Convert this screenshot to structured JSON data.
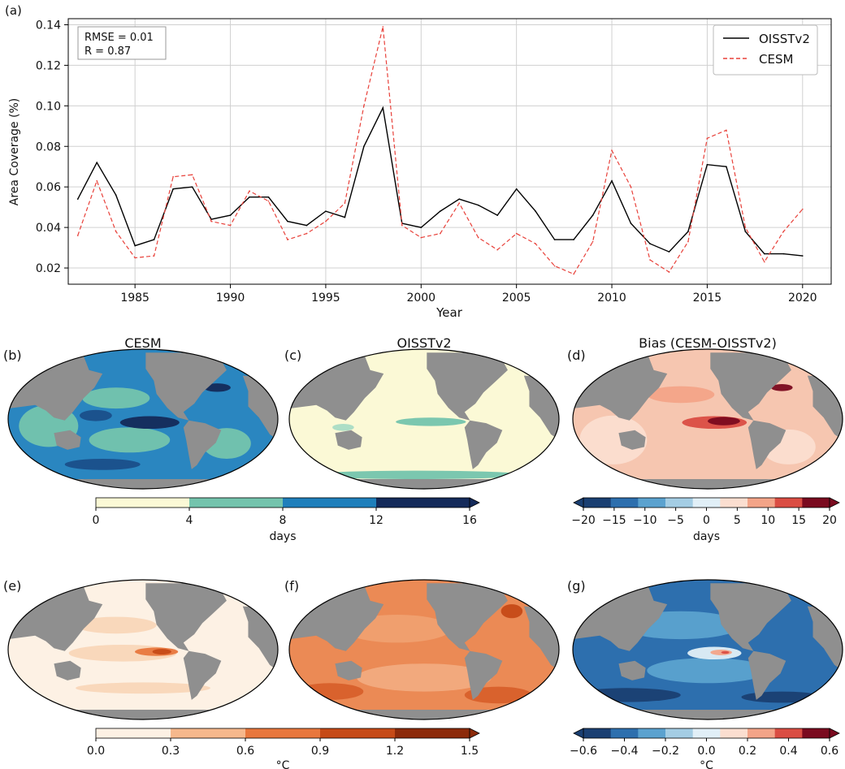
{
  "chart_data": [
    {
      "panel": "(a)",
      "type": "line",
      "xlabel": "Year",
      "ylabel": "Area Coverage (%)",
      "xlim": [
        1981.5,
        2021.5
      ],
      "ylim": [
        0.012,
        0.143
      ],
      "xticks": [
        1985,
        1990,
        1995,
        2000,
        2005,
        2010,
        2015,
        2020
      ],
      "yticks": [
        0.02,
        0.04,
        0.06,
        0.08,
        0.1,
        0.12,
        0.14
      ],
      "grid": true,
      "legend_position": "top-right",
      "annotation": [
        "RMSE = 0.01",
        "R = 0.87"
      ],
      "x": [
        1982,
        1983,
        1984,
        1985,
        1986,
        1987,
        1988,
        1989,
        1990,
        1991,
        1992,
        1993,
        1994,
        1995,
        1996,
        1997,
        1998,
        1999,
        2000,
        2001,
        2002,
        2003,
        2004,
        2005,
        2006,
        2007,
        2008,
        2009,
        2010,
        2011,
        2012,
        2013,
        2014,
        2015,
        2016,
        2017,
        2018,
        2019,
        2020
      ],
      "series": [
        {
          "name": "OISSTv2",
          "color": "#000000",
          "dash": "solid",
          "values": [
            0.054,
            0.072,
            0.056,
            0.031,
            0.034,
            0.059,
            0.06,
            0.044,
            0.046,
            0.055,
            0.055,
            0.043,
            0.041,
            0.048,
            0.045,
            0.08,
            0.099,
            0.042,
            0.04,
            0.048,
            0.054,
            0.051,
            0.046,
            0.059,
            0.048,
            0.034,
            0.034,
            0.046,
            0.063,
            0.042,
            0.032,
            0.028,
            0.038,
            0.071,
            0.07,
            0.038,
            0.027,
            0.027,
            0.026
          ]
        },
        {
          "name": "CESM",
          "color": "#e8413a",
          "dash": "dashed",
          "values": [
            0.036,
            0.063,
            0.038,
            0.025,
            0.026,
            0.065,
            0.066,
            0.043,
            0.041,
            0.058,
            0.053,
            0.034,
            0.037,
            0.043,
            0.052,
            0.1,
            0.139,
            0.041,
            0.035,
            0.037,
            0.052,
            0.035,
            0.029,
            0.037,
            0.032,
            0.021,
            0.017,
            0.033,
            0.078,
            0.06,
            0.024,
            0.018,
            0.033,
            0.084,
            0.088,
            0.04,
            0.023,
            0.038,
            0.049
          ]
        }
      ]
    },
    {
      "panel": "(b)",
      "type": "heatmap",
      "title": "CESM",
      "colorbar_label": "days",
      "levels": [
        0,
        4,
        8,
        12,
        16
      ],
      "colors": [
        "#fbf9d6",
        "#74c4ad",
        "#1f7fbb",
        "#142a5a"
      ]
    },
    {
      "panel": "(c)",
      "type": "heatmap",
      "title": "OISSTv2",
      "colorbar_label": "days",
      "levels": [
        0,
        4,
        8,
        12,
        16
      ],
      "colors": [
        "#fbf9d6",
        "#74c4ad",
        "#1f7fbb",
        "#142a5a"
      ]
    },
    {
      "panel": "(d)",
      "type": "heatmap",
      "title": "Bias (CESM-OISSTv2)",
      "colorbar_label": "days",
      "levels": [
        -20,
        -15,
        -10,
        -5,
        0,
        5,
        10,
        15,
        20
      ],
      "colors": [
        "#1a3f72",
        "#2d6fae",
        "#5ba2cf",
        "#a4cde4",
        "#e1eff7",
        "#fbded0",
        "#f3a488",
        "#da4d43",
        "#7a0a1f"
      ]
    },
    {
      "panel": "(e)",
      "type": "heatmap",
      "title": "",
      "colorbar_label": "°C",
      "levels": [
        0.0,
        0.3,
        0.6,
        0.9,
        1.2,
        1.5
      ],
      "colors": [
        "#fdf1e4",
        "#f6b88c",
        "#e8773d",
        "#c64a17",
        "#8c2a0a"
      ]
    },
    {
      "panel": "(f)",
      "type": "heatmap",
      "title": "",
      "colorbar_label": "°C",
      "levels": [
        0.0,
        0.3,
        0.6,
        0.9,
        1.2,
        1.5
      ],
      "colors": [
        "#fdf1e4",
        "#f6b88c",
        "#e8773d",
        "#c64a17",
        "#8c2a0a"
      ]
    },
    {
      "panel": "(g)",
      "type": "heatmap",
      "title": "",
      "colorbar_label": "°C",
      "levels": [
        -0.6,
        -0.4,
        -0.2,
        0.0,
        0.2,
        0.4,
        0.6
      ],
      "colors": [
        "#1a3f72",
        "#2d6fae",
        "#5ba2cf",
        "#a4cde4",
        "#e1eff7",
        "#fbded0",
        "#f3a488",
        "#da4d43",
        "#7a0a1f"
      ],
      "tick_labels": [
        "−0.6",
        "−0.4",
        "−0.2",
        "0.0",
        "0.2",
        "0.4",
        "0.6"
      ]
    }
  ]
}
